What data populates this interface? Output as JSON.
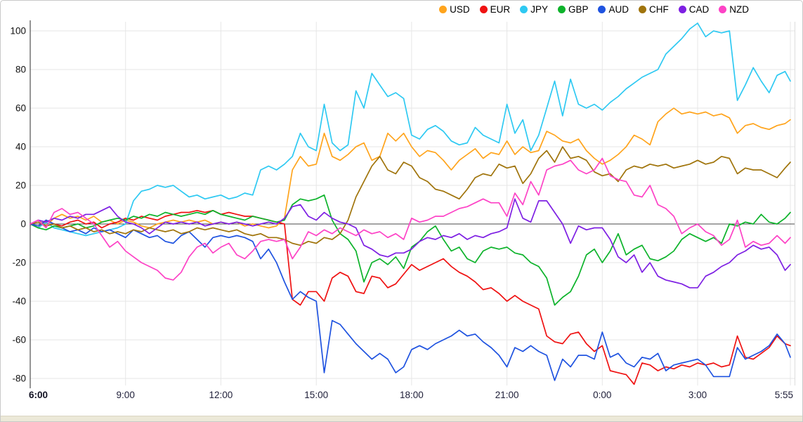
{
  "window": {
    "background": "#ffffff",
    "border_color": "#c9c9c9",
    "bottom_edge_color": "#ece9d8"
  },
  "chart_data": {
    "type": "line",
    "title": "",
    "xlabel": "",
    "ylabel": "",
    "x_unit": "minutes_since_06:00",
    "x_step_minutes": 15,
    "x_end_minute": 1435,
    "x_tick_labels": [
      "6:00",
      "9:00",
      "12:00",
      "15:00",
      "18:00",
      "21:00",
      "0:00",
      "3:00",
      "5:55"
    ],
    "x_tick_minutes": [
      0,
      180,
      360,
      540,
      720,
      900,
      1080,
      1260,
      1435
    ],
    "ylim": [
      -80,
      100
    ],
    "y_ticks": [
      100,
      80,
      60,
      40,
      20,
      0,
      -20,
      -40,
      -60,
      -80
    ],
    "grid": true,
    "legend_position": "top-right",
    "grid_color": "#e4e4e4",
    "zero_line_color": "#4a4a4a",
    "axis_line_color": "#2b2b2b",
    "series": [
      {
        "name": "USD",
        "color": "#ffa41c",
        "values": [
          0,
          2,
          -1,
          3,
          5,
          3,
          4,
          2,
          4,
          1,
          2,
          0,
          2,
          1,
          -1,
          -2,
          0,
          1,
          2,
          1,
          2,
          1,
          2,
          0,
          1,
          0,
          1,
          -1,
          0,
          -1,
          -2,
          -1,
          3,
          28,
          35,
          30,
          31,
          47,
          35,
          33,
          36,
          40,
          42,
          33,
          35,
          47,
          43,
          47,
          40,
          35,
          38,
          37,
          33,
          28,
          33,
          36,
          39,
          34,
          37,
          36,
          43,
          36,
          40,
          37,
          38,
          48,
          46,
          43,
          42,
          44,
          38,
          34,
          31,
          33,
          36,
          40,
          46,
          44,
          41,
          53,
          57,
          60,
          57,
          58,
          57,
          58,
          56,
          57,
          55,
          47,
          51,
          52,
          50,
          49,
          51,
          52,
          54
        ]
      },
      {
        "name": "EUR",
        "color": "#ef1212",
        "values": [
          0,
          -2,
          2,
          0,
          -1,
          1,
          2,
          0,
          1,
          -2,
          0,
          1,
          3,
          2,
          4,
          3,
          2,
          4,
          5,
          6,
          6,
          7,
          6,
          7,
          5,
          6,
          5,
          4,
          4,
          3,
          2,
          1,
          0,
          -39,
          -42,
          -35,
          -35,
          -40,
          -28,
          -25,
          -27,
          -35,
          -36,
          -27,
          -28,
          -33,
          -31,
          -26,
          -21,
          -24,
          -22,
          -20,
          -18,
          -22,
          -25,
          -27,
          -30,
          -34,
          -33,
          -36,
          -40,
          -37,
          -40,
          -42,
          -44,
          -58,
          -61,
          -62,
          -57,
          -56,
          -62,
          -66,
          -63,
          -76,
          -77,
          -78,
          -83,
          -72,
          -73,
          -76,
          -74,
          -75,
          -73,
          -74,
          -72,
          -73,
          -72,
          -74,
          -73,
          -58,
          -69,
          -70,
          -67,
          -64,
          -58,
          -62,
          -63
        ]
      },
      {
        "name": "JPY",
        "color": "#2ec9f2",
        "values": [
          0,
          -2,
          1,
          -2,
          -3,
          -4,
          -5,
          -6,
          -5,
          -4,
          -3,
          -2,
          0,
          12,
          17,
          18,
          20,
          19,
          20,
          17,
          14,
          15,
          13,
          14,
          15,
          13,
          14,
          16,
          15,
          28,
          30,
          28,
          31,
          35,
          47,
          40,
          38,
          62,
          42,
          38,
          41,
          69,
          60,
          78,
          72,
          66,
          68,
          65,
          46,
          44,
          49,
          51,
          48,
          43,
          41,
          42,
          50,
          46,
          44,
          42,
          62,
          47,
          54,
          38,
          46,
          60,
          74,
          56,
          75,
          62,
          60,
          62,
          59,
          63,
          66,
          70,
          73,
          76,
          78,
          80,
          88,
          92,
          96,
          101,
          104,
          97,
          100,
          99,
          100,
          64,
          72,
          81,
          74,
          68,
          77,
          79,
          74
        ]
      },
      {
        "name": "GBP",
        "color": "#0db32b",
        "values": [
          0,
          -2,
          -3,
          -1,
          -2,
          -1,
          0,
          -2,
          -1,
          1,
          2,
          3,
          2,
          4,
          3,
          5,
          4,
          6,
          5,
          4,
          5,
          6,
          5,
          7,
          5,
          4,
          3,
          2,
          4,
          3,
          2,
          1,
          2,
          10,
          13,
          12,
          13,
          15,
          2,
          -5,
          -8,
          -14,
          -30,
          -20,
          -18,
          -21,
          -17,
          -23,
          -12,
          -9,
          -4,
          -1,
          -8,
          -14,
          -12,
          -18,
          -20,
          -14,
          -12,
          -13,
          -12,
          -15,
          -16,
          -20,
          -22,
          -28,
          -42,
          -38,
          -35,
          -27,
          -16,
          -13,
          -20,
          -14,
          -5,
          -16,
          -13,
          -11,
          -18,
          -19,
          -17,
          -14,
          -8,
          -5,
          -7,
          -9,
          -7,
          -10,
          0,
          -1,
          1,
          0,
          5,
          1,
          0,
          3,
          6
        ]
      },
      {
        "name": "AUD",
        "color": "#1f53e0",
        "values": [
          0,
          -1,
          2,
          0,
          -2,
          -4,
          -3,
          -5,
          -2,
          -4,
          -3,
          -5,
          -7,
          -3,
          -5,
          -7,
          -6,
          -9,
          -10,
          -6,
          -4,
          -8,
          -12,
          -7,
          -6,
          -7,
          -6,
          -7,
          -9,
          -18,
          -13,
          -20,
          -30,
          -39,
          -35,
          -38,
          -40,
          -77,
          -50,
          -52,
          -57,
          -62,
          -66,
          -70,
          -67,
          -70,
          -77,
          -74,
          -65,
          -63,
          -65,
          -62,
          -60,
          -58,
          -55,
          -58,
          -57,
          -61,
          -64,
          -68,
          -74,
          -64,
          -66,
          -63,
          -66,
          -68,
          -81,
          -70,
          -74,
          -68,
          -68,
          -70,
          -56,
          -69,
          -67,
          -72,
          -74,
          -69,
          -70,
          -67,
          -76,
          -73,
          -72,
          -71,
          -70,
          -73,
          -79,
          -79,
          -79,
          -64,
          -70,
          -68,
          -66,
          -63,
          -57,
          -62,
          -69
        ]
      },
      {
        "name": "CHF",
        "color": "#a0740b",
        "values": [
          0,
          1,
          -1,
          0,
          -2,
          -1,
          -3,
          -2,
          -4,
          -3,
          -5,
          -4,
          -5,
          -3,
          -4,
          -2,
          -3,
          -4,
          -3,
          -5,
          -4,
          -2,
          -3,
          -2,
          -3,
          -4,
          -3,
          -5,
          -6,
          -5,
          -7,
          -7,
          -8,
          -10,
          -11,
          -9,
          -10,
          -7,
          -8,
          -5,
          2,
          14,
          22,
          30,
          35,
          28,
          26,
          32,
          30,
          24,
          22,
          18,
          17,
          15,
          13,
          18,
          24,
          26,
          25,
          31,
          29,
          30,
          21,
          26,
          34,
          38,
          32,
          40,
          34,
          35,
          33,
          27,
          25,
          26,
          22,
          28,
          30,
          29,
          31,
          30,
          31,
          29,
          30,
          31,
          33,
          31,
          32,
          35,
          34,
          26,
          29,
          28,
          28,
          26,
          24,
          29,
          32
        ]
      },
      {
        "name": "CAD",
        "color": "#7e20e3",
        "values": [
          0,
          2,
          1,
          3,
          2,
          4,
          3,
          5,
          5,
          7,
          9,
          4,
          1,
          0,
          -2,
          -5,
          -2,
          1,
          0,
          1,
          0,
          1,
          -1,
          0,
          1,
          0,
          1,
          0,
          -1,
          0,
          1,
          0,
          3,
          9,
          10,
          4,
          2,
          6,
          3,
          1,
          0,
          -2,
          -11,
          -13,
          -16,
          -17,
          -15,
          -15,
          -13,
          -9,
          -7,
          -8,
          -6,
          -7,
          -5,
          -8,
          -6,
          -7,
          -5,
          -4,
          -2,
          13,
          3,
          1,
          12,
          12,
          6,
          0,
          -10,
          -1,
          -3,
          -2,
          -2,
          -8,
          -17,
          -20,
          -16,
          -25,
          -20,
          -27,
          -29,
          -30,
          -31,
          -33,
          -33,
          -27,
          -25,
          -22,
          -20,
          -16,
          -14,
          -11,
          -13,
          -12,
          -16,
          -24,
          -21
        ]
      },
      {
        "name": "NZD",
        "color": "#fd43c6",
        "values": [
          0,
          2,
          -2,
          6,
          8,
          5,
          6,
          3,
          0,
          -6,
          -12,
          -9,
          -14,
          -17,
          -20,
          -22,
          -24,
          -28,
          -29,
          -25,
          -17,
          -12,
          -10,
          -15,
          -12,
          -10,
          -16,
          -18,
          -14,
          -9,
          -8,
          -9,
          -8,
          -18,
          -12,
          -4,
          -6,
          -3,
          -5,
          -2,
          -4,
          -6,
          -3,
          -5,
          -4,
          -7,
          -5,
          -8,
          3,
          1,
          2,
          4,
          4,
          6,
          8,
          9,
          11,
          13,
          11,
          11,
          4,
          16,
          10,
          22,
          15,
          28,
          30,
          31,
          33,
          28,
          26,
          28,
          34,
          25,
          23,
          22,
          15,
          14,
          20,
          10,
          8,
          4,
          -5,
          -2,
          0,
          -4,
          -6,
          -11,
          -8,
          2,
          -12,
          -9,
          -11,
          -10,
          -6,
          -10,
          -7
        ]
      }
    ]
  }
}
